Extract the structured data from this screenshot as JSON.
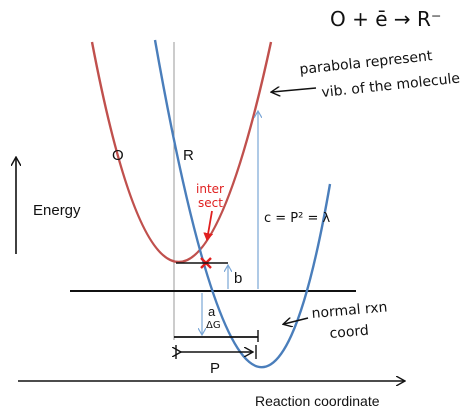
{
  "header_equation": "O + ē → R⁻",
  "curve_labels": {
    "oxidized": "O",
    "reduced": "R"
  },
  "axis_labels": {
    "y": "Energy",
    "x": "Reaction coordinate"
  },
  "annotations": {
    "parabola_note_line1": "parabola represent",
    "parabola_note_line2": "vib. of the molecule",
    "intersect_line1": "inter",
    "intersect_line2": "sect",
    "c_label": "c = P² = λ",
    "b_label": "b",
    "a_label": "a",
    "dg_label": "ΔG",
    "p_label": "P",
    "normal_line1": "normal rxn",
    "normal_line2": "coord"
  },
  "colors": {
    "curve_o": "#c0504d",
    "curve_r": "#4a7ebb",
    "ink": "#111111",
    "marker": "#e02020",
    "guide_blue": "#7aa6d6",
    "vertical": "#999999"
  }
}
